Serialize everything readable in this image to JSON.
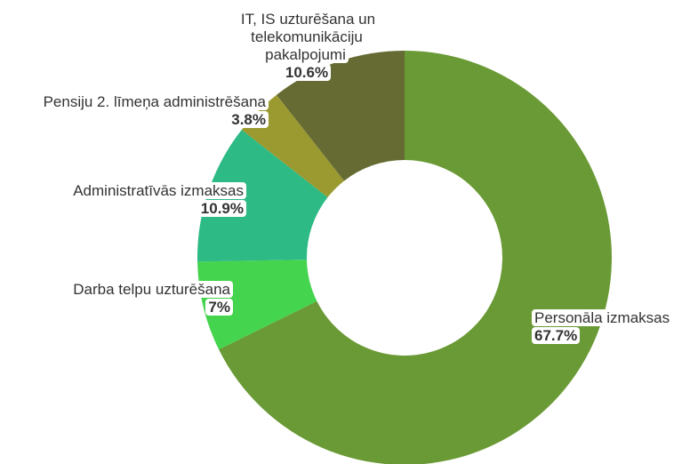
{
  "chart_data": {
    "type": "donut",
    "categories": [
      "Personāla izmaksas",
      "Darba telpu uzturēšana",
      "Administratīvās izmaksas",
      "Pensiju 2. līmeņa administrēšana",
      "IT, IS uzturēšana un telekomunikāciju pakalpojumi"
    ],
    "values": [
      67.7,
      7,
      10.9,
      3.8,
      10.6
    ],
    "value_labels": [
      "67.7%",
      "7%",
      "10.9%",
      "3.8%",
      "10.6%"
    ],
    "colors": [
      "#6a9a35",
      "#44d44e",
      "#2dba85",
      "#9a9a30",
      "#666b33"
    ]
  }
}
